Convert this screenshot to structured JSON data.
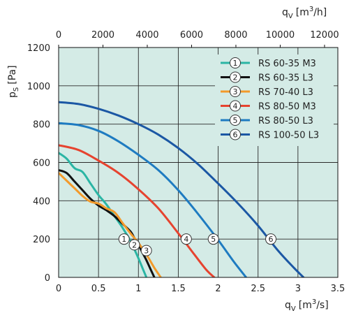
{
  "chart_data": {
    "type": "line",
    "title": "",
    "plot_background": "#d4ebe6",
    "grid": true,
    "legend_position": "top-right",
    "xlim": [
      0,
      3.5
    ],
    "ylim": [
      0,
      1200
    ],
    "x_ticks": [
      0,
      0.5,
      1,
      1.5,
      2,
      2.5,
      3,
      3.5
    ],
    "x_tick_labels": [
      "0",
      "0.5",
      "1",
      "1.5",
      "2",
      "2.5",
      "3",
      "3.5"
    ],
    "y_ticks": [
      0,
      200,
      400,
      600,
      800,
      1000,
      1200
    ],
    "y_tick_labels": [
      "0",
      "200",
      "400",
      "600",
      "800",
      "1000",
      "1200"
    ],
    "x2_ticks": [
      0,
      2000,
      4000,
      6000,
      8000,
      10000,
      12000
    ],
    "x2_tick_labels": [
      "0",
      "2000",
      "4000",
      "6000",
      "8000",
      "10000",
      "12000"
    ],
    "xlabel": {
      "main": "q",
      "sub": "V",
      "unit": "[m",
      "sup": "3",
      "unit_end": "/s]"
    },
    "x2label": {
      "main": "q",
      "sub": "V",
      "unit": "[m",
      "sup": "3",
      "unit_end": "/h]"
    },
    "ylabel": {
      "main": "p",
      "sub": "S",
      "unit": "[Pa]"
    },
    "series": [
      {
        "marker": "1",
        "name": "RS 60-35 M3",
        "color": "#2bb5a4",
        "x": [
          0,
          0.1,
          0.2,
          0.3,
          0.4,
          0.5,
          0.6,
          0.7,
          0.8,
          0.9,
          1.0,
          1.05,
          1.1
        ],
        "y": [
          650,
          620,
          570,
          550,
          490,
          430,
          380,
          320,
          260,
          190,
          100,
          50,
          0
        ],
        "marker_at": [
          0.82,
          200
        ]
      },
      {
        "marker": "2",
        "name": "RS 60-35 L3",
        "color": "#111111",
        "x": [
          0,
          0.1,
          0.2,
          0.3,
          0.4,
          0.5,
          0.6,
          0.7,
          0.8,
          0.9,
          0.95,
          1.0,
          1.05,
          1.1,
          1.15,
          1.2
        ],
        "y": [
          560,
          545,
          500,
          455,
          410,
          375,
          350,
          320,
          280,
          240,
          205,
          170,
          130,
          90,
          45,
          0
        ],
        "marker_at": [
          0.95,
          170
        ]
      },
      {
        "marker": "3",
        "name": "RS 70-40 L3",
        "color": "#f39a2b",
        "x": [
          0,
          0.1,
          0.2,
          0.3,
          0.4,
          0.5,
          0.6,
          0.7,
          0.8,
          0.9,
          1.0,
          1.1,
          1.2,
          1.28
        ],
        "y": [
          545,
          505,
          465,
          425,
          395,
          385,
          360,
          340,
          285,
          230,
          180,
          120,
          50,
          0
        ],
        "marker_at": [
          1.1,
          140
        ]
      },
      {
        "marker": "4",
        "name": "RS 80-50 M3",
        "color": "#e6432f",
        "x": [
          0,
          0.25,
          0.5,
          0.75,
          1.0,
          1.25,
          1.5,
          1.7,
          1.85,
          1.95
        ],
        "y": [
          690,
          665,
          610,
          545,
          460,
          360,
          230,
          120,
          40,
          0
        ],
        "marker_at": [
          1.6,
          200
        ]
      },
      {
        "marker": "5",
        "name": "RS 80-50 L3",
        "color": "#1e7bc1",
        "x": [
          0,
          0.25,
          0.5,
          0.75,
          1.0,
          1.25,
          1.5,
          1.75,
          2.0,
          2.2,
          2.35
        ],
        "y": [
          805,
          795,
          765,
          710,
          640,
          560,
          455,
          330,
          195,
          80,
          0
        ],
        "marker_at": [
          1.94,
          200
        ]
      },
      {
        "marker": "6",
        "name": "RS 100-50 L3",
        "color": "#1b57a4",
        "x": [
          0,
          0.25,
          0.5,
          0.75,
          1.0,
          1.25,
          1.5,
          1.75,
          2.0,
          2.25,
          2.5,
          2.75,
          2.95,
          3.07
        ],
        "y": [
          915,
          905,
          880,
          845,
          800,
          745,
          675,
          590,
          490,
          385,
          270,
          140,
          50,
          0
        ],
        "marker_at": [
          2.66,
          200
        ]
      }
    ]
  }
}
